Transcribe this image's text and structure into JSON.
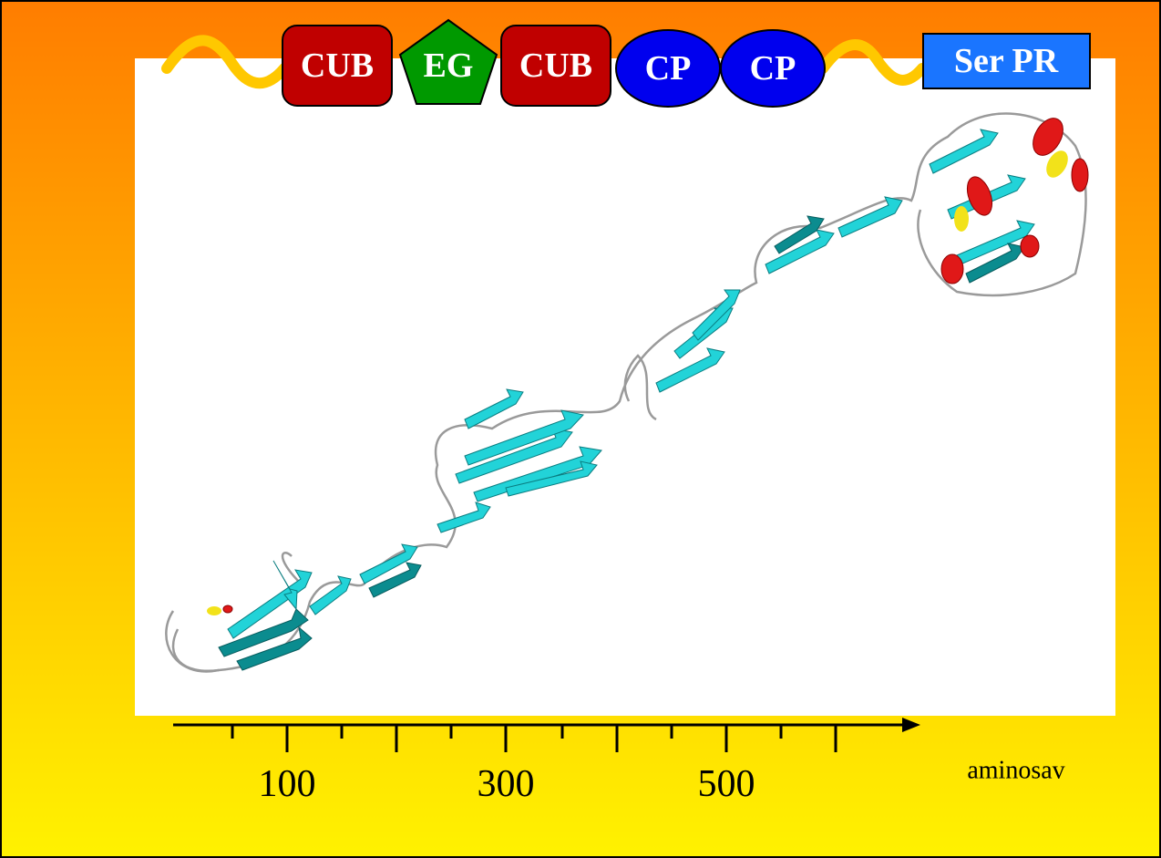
{
  "domains": [
    "CUB",
    "EG",
    "CUB",
    "CP",
    "CP",
    "Ser PR"
  ],
  "axis": {
    "tick_labels": [
      100,
      300,
      500
    ],
    "unit_label": "aminosav"
  }
}
